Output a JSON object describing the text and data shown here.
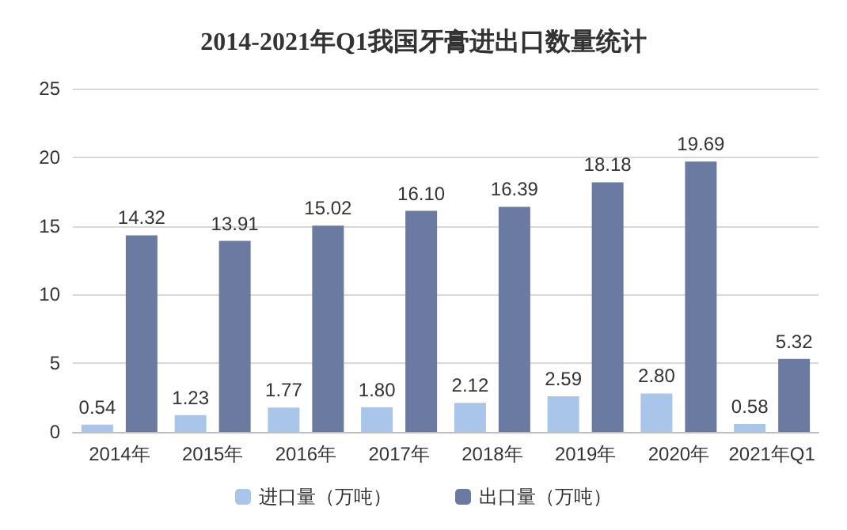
{
  "chart_data": {
    "type": "bar",
    "title": "2014-2021年Q1我国牙膏进出口数量统计",
    "categories": [
      "2014年",
      "2015年",
      "2016年",
      "2017年",
      "2018年",
      "2019年",
      "2020年",
      "2021年Q1"
    ],
    "series": [
      {
        "name": "进口量（万吨）",
        "color": "#a9c5ea",
        "values": [
          0.54,
          1.23,
          1.77,
          1.8,
          2.12,
          2.59,
          2.8,
          0.58
        ],
        "value_labels": [
          "0.54",
          "1.23",
          "1.77",
          "1.80",
          "2.12",
          "2.59",
          "2.80",
          "0.58"
        ]
      },
      {
        "name": "出口量（万吨）",
        "color": "#6b7aa1",
        "values": [
          14.32,
          13.91,
          15.02,
          16.1,
          16.39,
          18.18,
          19.69,
          5.32
        ],
        "value_labels": [
          "14.32",
          "13.91",
          "15.02",
          "16.10",
          "16.39",
          "18.18",
          "19.69",
          "5.32"
        ]
      }
    ],
    "ylim": [
      0,
      25
    ],
    "yticks": [
      0,
      5,
      10,
      15,
      20,
      25
    ],
    "grid": "y",
    "legend": "bottom"
  }
}
